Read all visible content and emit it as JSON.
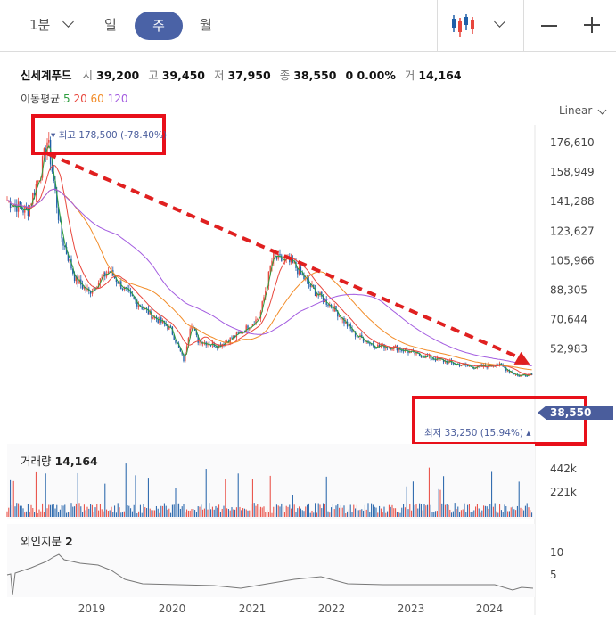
{
  "toolbar": {
    "interval": "1분",
    "day": "일",
    "week": "주",
    "month": "월",
    "chart_style_icon": "candlestick-icon",
    "minus": "—",
    "plus": "+"
  },
  "quote": {
    "name": "신세계푸드",
    "open_label": "시",
    "open": "39,200",
    "high_label": "고",
    "high": "39,450",
    "low_label": "저",
    "low": "37,950",
    "close_label": "종",
    "close": "38,550",
    "change": "0 0.00%",
    "volume_label": "거",
    "volume": "14,164"
  },
  "moving_average": {
    "label": "이동평균",
    "periods": [
      "5",
      "20",
      "60",
      "120"
    ],
    "colors": [
      "#2e9e3f",
      "#e8463c",
      "#f28c28",
      "#a35ce0"
    ]
  },
  "scale_label": "Linear",
  "colors": {
    "up": "#e8463c",
    "down": "#1f5fa8",
    "trend": "#e02020",
    "highlight": "#e8101a",
    "price_tag": "#4a5d9c"
  },
  "chart_data": {
    "type": "candlestick",
    "y_ticks": [
      "176,610",
      "158,949",
      "141,288",
      "123,627",
      "105,966",
      "88,305",
      "70,644",
      "52,983"
    ],
    "x_ticks": [
      "2019",
      "2020",
      "2021",
      "2022",
      "2023",
      "2024"
    ],
    "ylim": [
      35322,
      185000
    ],
    "last_price": "38,550",
    "high_annotation": "최고 178,500 (-78.40%)",
    "low_annotation": "최저 33,250 (15.94%)",
    "series": [
      {
        "name": "close",
        "values": [
          {
            "x": "2018-01",
            "y": 142000
          },
          {
            "x": "2018-04",
            "y": 135000
          },
          {
            "x": "2018-06",
            "y": 160000
          },
          {
            "x": "2018-07",
            "y": 178500
          },
          {
            "x": "2018-09",
            "y": 120000
          },
          {
            "x": "2018-11",
            "y": 95000
          },
          {
            "x": "2019-01",
            "y": 87000
          },
          {
            "x": "2019-04",
            "y": 100000
          },
          {
            "x": "2019-07",
            "y": 85000
          },
          {
            "x": "2019-10",
            "y": 74000
          },
          {
            "x": "2020-01",
            "y": 65000
          },
          {
            "x": "2020-03",
            "y": 46000
          },
          {
            "x": "2020-04",
            "y": 70000
          },
          {
            "x": "2020-05",
            "y": 58000
          },
          {
            "x": "2020-08",
            "y": 55000
          },
          {
            "x": "2020-11",
            "y": 62000
          },
          {
            "x": "2021-02",
            "y": 72000
          },
          {
            "x": "2021-04",
            "y": 108000
          },
          {
            "x": "2021-07",
            "y": 104000
          },
          {
            "x": "2021-10",
            "y": 88000
          },
          {
            "x": "2022-01",
            "y": 77000
          },
          {
            "x": "2022-04",
            "y": 62000
          },
          {
            "x": "2022-07",
            "y": 55000
          },
          {
            "x": "2022-10",
            "y": 54000
          },
          {
            "x": "2023-01",
            "y": 50000
          },
          {
            "x": "2023-04",
            "y": 47000
          },
          {
            "x": "2023-07",
            "y": 44000
          },
          {
            "x": "2023-10",
            "y": 42000
          },
          {
            "x": "2024-01",
            "y": 44000
          },
          {
            "x": "2024-04",
            "y": 37000
          },
          {
            "x": "2024-06",
            "y": 38550
          }
        ]
      }
    ],
    "trendline": [
      {
        "x": "2018-07",
        "y": 170000
      },
      {
        "x": "2024-06",
        "y": 47000
      }
    ]
  },
  "volume_panel": {
    "title": "거래량",
    "value": "14,164",
    "ticks": [
      "442k",
      "221k"
    ]
  },
  "foreign_panel": {
    "title": "외인지분",
    "value": "2",
    "ticks": [
      "10",
      "5"
    ]
  }
}
